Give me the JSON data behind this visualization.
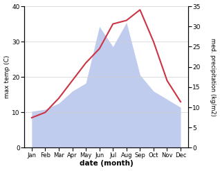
{
  "months": [
    "Jan",
    "Feb",
    "Mar",
    "Apr",
    "May",
    "Jun",
    "Jul",
    "Aug",
    "Sep",
    "Oct",
    "Nov",
    "Dec"
  ],
  "temperature": [
    8.5,
    10.0,
    14.0,
    19.0,
    24.0,
    28.0,
    35.0,
    36.0,
    39.0,
    30.0,
    19.0,
    13.0
  ],
  "precipitation": [
    9.0,
    9.5,
    11.0,
    14.0,
    16.0,
    30.0,
    25.0,
    31.0,
    18.0,
    14.0,
    12.0,
    10.0
  ],
  "temp_color": "#cc3344",
  "precip_color": "#c0ccee",
  "temp_ylim": [
    0,
    40
  ],
  "precip_ylim": [
    0,
    35
  ],
  "temp_yticks": [
    0,
    10,
    20,
    30,
    40
  ],
  "precip_yticks": [
    0,
    5,
    10,
    15,
    20,
    25,
    30,
    35
  ],
  "xlabel": "date (month)",
  "ylabel_left": "max temp (C)",
  "ylabel_right": "med. precipitation (kg/m2)",
  "background_color": "#ffffff",
  "grid_color": "#d0d0d0"
}
